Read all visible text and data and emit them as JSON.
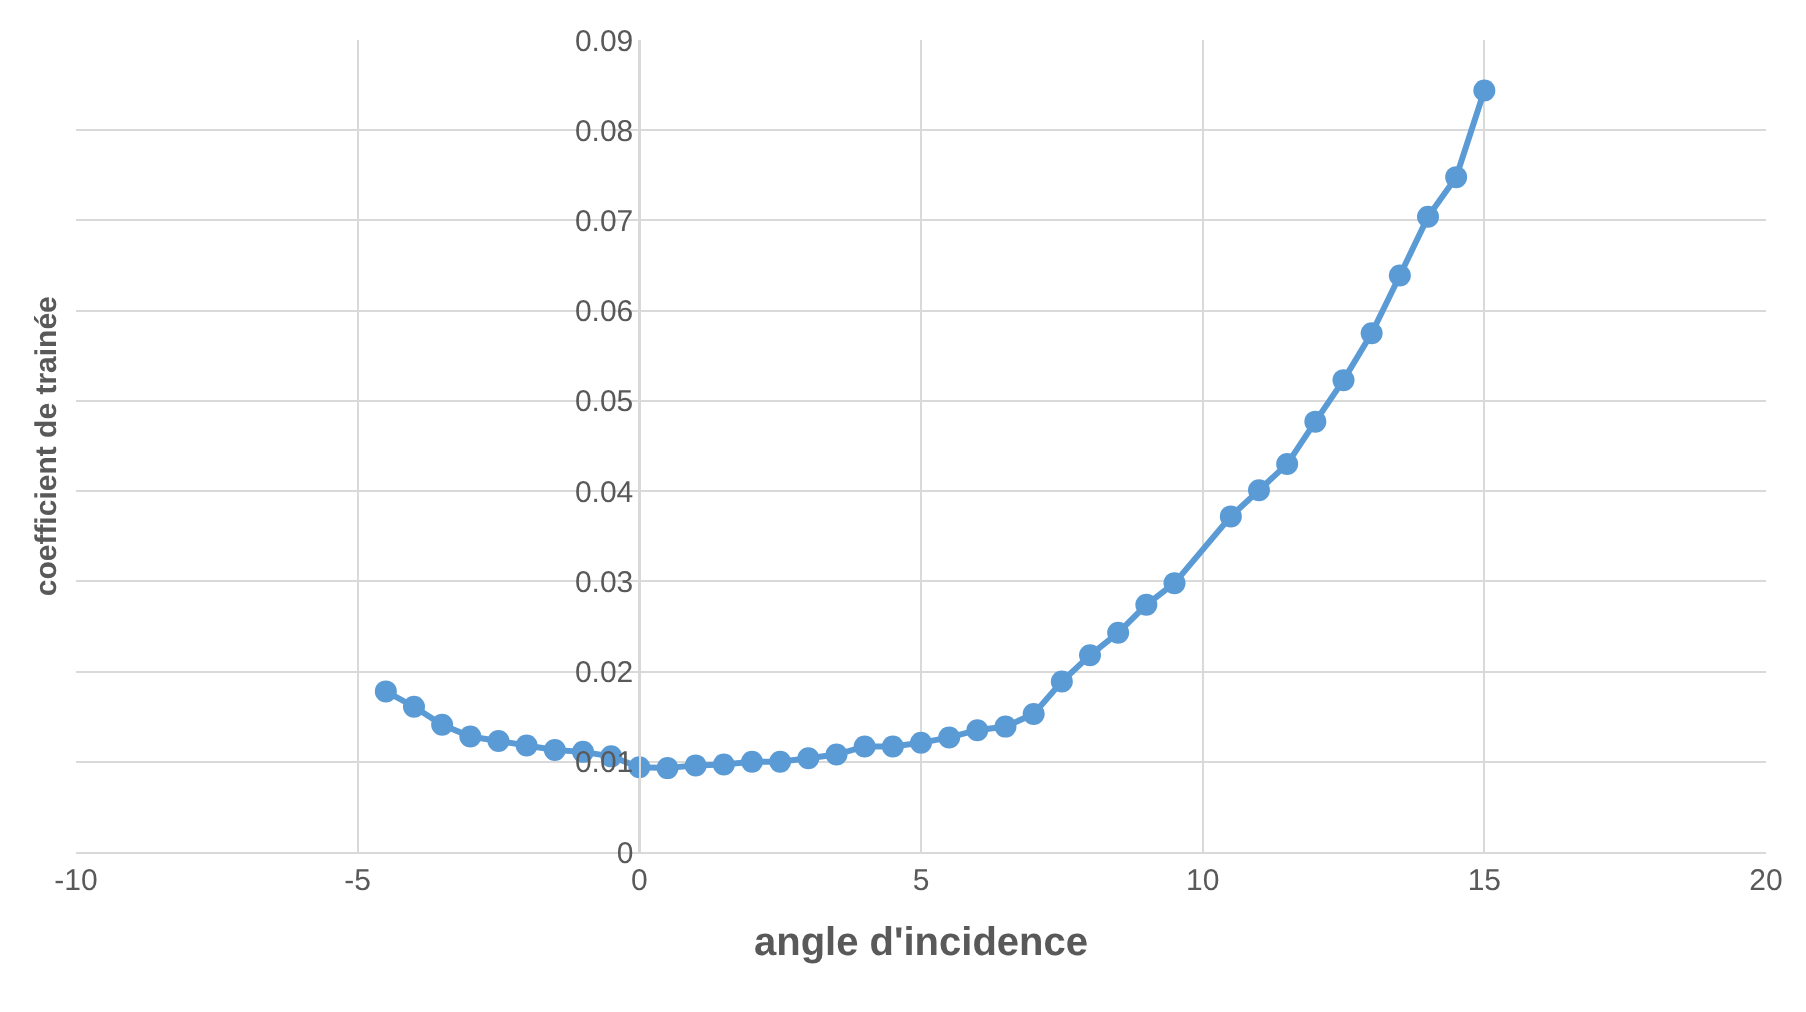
{
  "chart_data": {
    "type": "line",
    "xlabel": "angle d'incidence",
    "ylabel": "coefficient de trainée",
    "x": [
      -4.5,
      -4,
      -3.5,
      -3,
      -2.5,
      -2,
      -1.5,
      -1,
      -0.5,
      0,
      0.5,
      1,
      1.5,
      2,
      2.5,
      3,
      3.5,
      4,
      4.5,
      5,
      5.5,
      6,
      6.5,
      7,
      7.5,
      8,
      8.5,
      9,
      9.5,
      10.5,
      11,
      11.5,
      12,
      12.5,
      13,
      13.5,
      14,
      14.5,
      15
    ],
    "series": [
      {
        "color": "#5b9bd5",
        "values": [
          0.0178,
          0.0161,
          0.0141,
          0.0128,
          0.0123,
          0.0118,
          0.0113,
          0.0111,
          0.0106,
          0.0094,
          0.0093,
          0.0096,
          0.0097,
          0.01,
          0.01,
          0.0104,
          0.0108,
          0.0117,
          0.0117,
          0.0121,
          0.0127,
          0.0135,
          0.0139,
          0.0153,
          0.0189,
          0.0218,
          0.0243,
          0.0274,
          0.0298,
          0.0372,
          0.0401,
          0.043,
          0.0477,
          0.0523,
          0.0575,
          0.0639,
          0.0704,
          0.0748,
          0.0844
        ]
      }
    ],
    "xlim": [
      -10,
      20
    ],
    "xticks": [
      -10,
      -5,
      0,
      5,
      10,
      15,
      20
    ],
    "ylim": [
      0,
      0.09
    ],
    "yticks": [
      0,
      0.01,
      0.02,
      0.03,
      0.04,
      0.05,
      0.06,
      0.07,
      0.08,
      0.09
    ],
    "grid": true,
    "marker": "circle",
    "line_style": "solid"
  }
}
